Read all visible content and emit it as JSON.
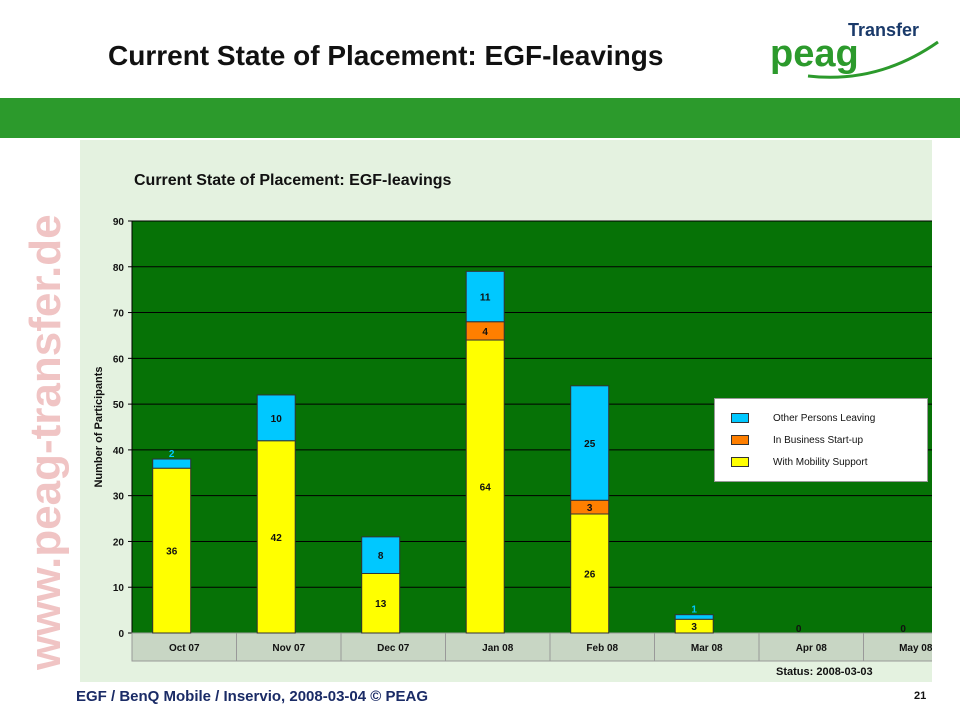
{
  "slide": {
    "title": "Current State of Placement: EGF-leavings",
    "logo_text_main": "peag",
    "logo_text_sub": "Transfer",
    "watermark": "www.peag-transfer.de",
    "status": "Status: 2008-03-03",
    "footer": "EGF /  BenQ Mobile / Inservio, 2008-03-04 © PEAG",
    "page_number": "21"
  },
  "colors": {
    "band_green": "#2c9a2c",
    "plot_bg": "#067206",
    "mobility": "#ffff00",
    "startup": "#ff7f00",
    "other": "#00c8ff",
    "footer_text": "#1a2b66"
  },
  "chart_data": {
    "type": "bar",
    "stacked": true,
    "title": "Current State of Placement: EGF-leavings",
    "xlabel": "",
    "ylabel": "Number of Participants",
    "ylim": [
      0,
      90
    ],
    "yticks": [
      0,
      10,
      20,
      30,
      40,
      50,
      60,
      70,
      80,
      90
    ],
    "grid": true,
    "legend_position": "right",
    "categories": [
      "Oct 07",
      "Nov 07",
      "Dec 07",
      "Jan 08",
      "Feb 08",
      "Mar 08",
      "Apr 08",
      "May 08"
    ],
    "series": [
      {
        "name": "With Mobility Support",
        "color": "#ffff00",
        "values": [
          36,
          42,
          13,
          64,
          26,
          3,
          0,
          0
        ]
      },
      {
        "name": "In Business Start-up",
        "color": "#ff7f00",
        "values": [
          0,
          0,
          0,
          4,
          3,
          0,
          0,
          0
        ]
      },
      {
        "name": "Other Persons Leaving",
        "color": "#00c8ff",
        "values": [
          2,
          10,
          8,
          11,
          25,
          1,
          0,
          0
        ]
      }
    ],
    "legend_order": [
      "Other Persons Leaving",
      "In Business Start-up",
      "With Mobility Support"
    ]
  }
}
